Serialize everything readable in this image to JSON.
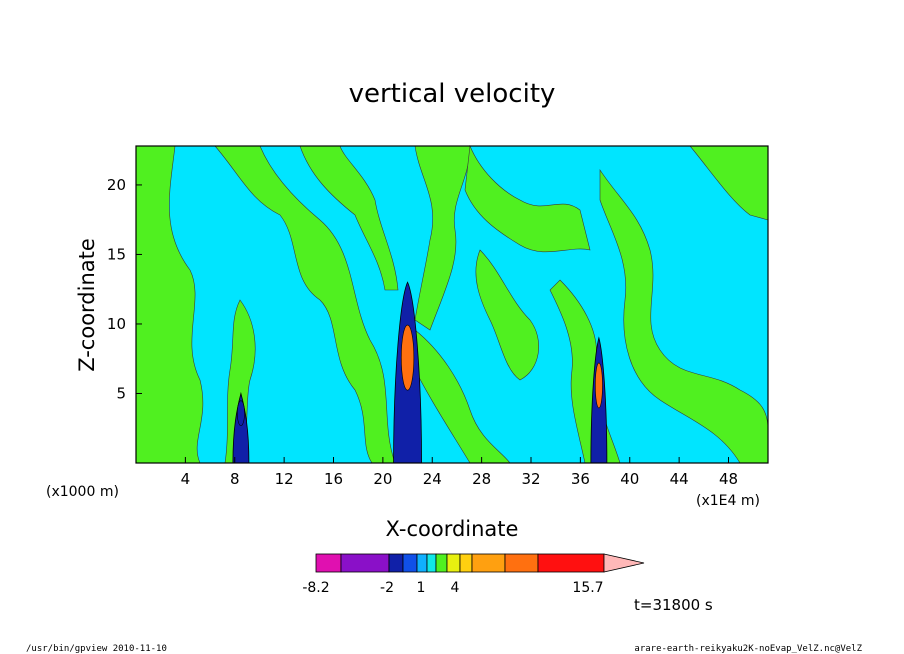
{
  "chart_data": {
    "type": "heatmap",
    "title": "vertical velocity",
    "xlabel": "X-coordinate",
    "ylabel": "Z-coordinate",
    "x_unit_left": "(x1000 m)",
    "x_unit_right": "(x1E4 m)",
    "xlim": [
      0,
      51.2
    ],
    "ylim": [
      0,
      22.8
    ],
    "xticks": [
      "4",
      "8",
      "12",
      "16",
      "20",
      "24",
      "28",
      "32",
      "36",
      "40",
      "44",
      "48"
    ],
    "xtick_values": [
      4,
      8,
      12,
      16,
      20,
      24,
      28,
      32,
      36,
      40,
      44,
      48
    ],
    "yticks": [
      "5",
      "10",
      "15",
      "20"
    ],
    "ytick_values": [
      5,
      10,
      15,
      20
    ],
    "background_level_color": "#00e5ff",
    "colorbar": {
      "level_labels": [
        "-8.2",
        "-2",
        "1",
        "4",
        "15.7"
      ],
      "colors": [
        "#e010b0",
        "#8a10c8",
        "#1020a8",
        "#1050e8",
        "#10b0ff",
        "#10e8e8",
        "#50f020",
        "#e8f010",
        "#ffd010",
        "#ffa010",
        "#ff7010",
        "#ff1010",
        "#ff8080",
        "#ffb8b8"
      ]
    },
    "time_label": "t=31800 s",
    "updraft_cores": [
      {
        "x_center": 22,
        "z_top": 13,
        "color": "#ff7010"
      },
      {
        "x_center": 37.5,
        "z_top": 9,
        "color": "#ff7010"
      },
      {
        "x_center": 8.5,
        "z_top": 5,
        "color": "#1020a8"
      }
    ]
  },
  "footer": {
    "left": "/usr/bin/gpview   2010-11-10",
    "right": "arare-earth-reikyaku2K-noEvap_VelZ.nc@VelZ"
  }
}
